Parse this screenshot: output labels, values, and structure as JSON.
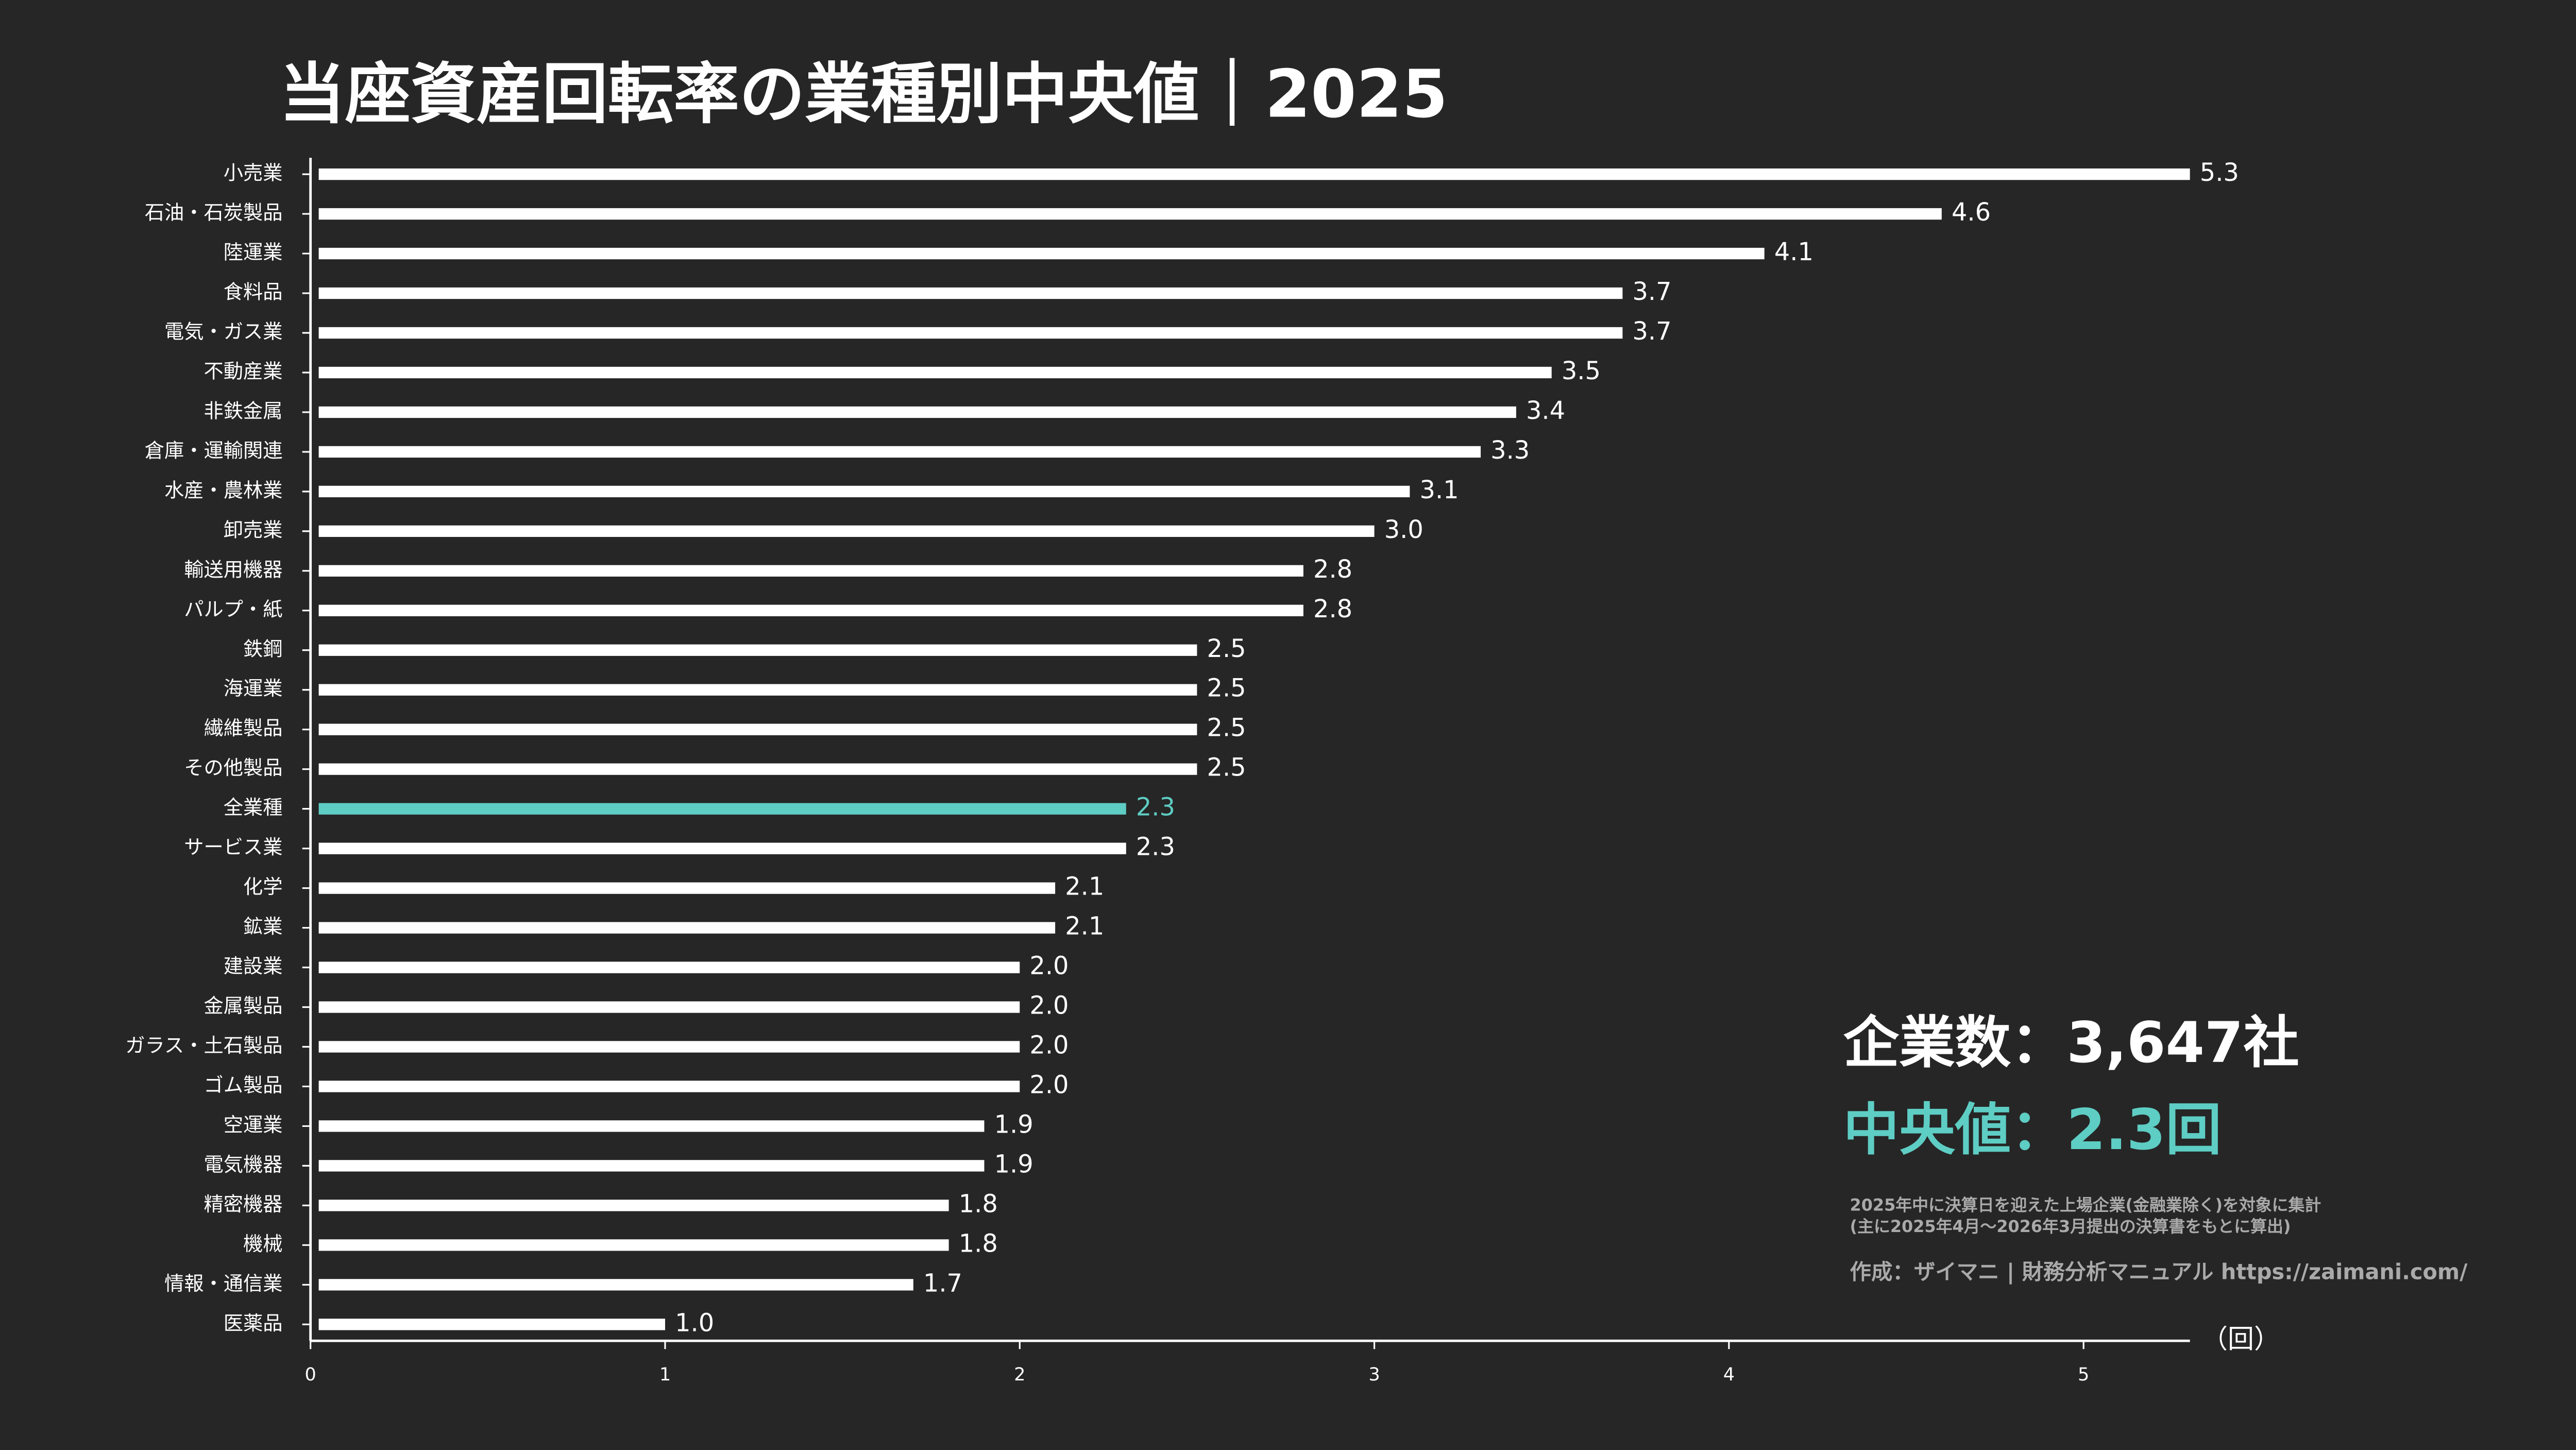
{
  "chart_data": {
    "type": "barh",
    "title": "当座資産回転率の業種別中央値｜2025",
    "categories": [
      "小売業",
      "石油・石炭製品",
      "陸運業",
      "食料品",
      "電気・ガス業",
      "不動産業",
      "非鉄金属",
      "倉庫・運輸関連",
      "水産・農林業",
      "卸売業",
      "輸送用機器",
      "パルプ・紙",
      "鉄鋼",
      "海運業",
      "繊維製品",
      "その他製品",
      "全業種",
      "サービス業",
      "化学",
      "鉱業",
      "建設業",
      "金属製品",
      "ガラス・土石製品",
      "ゴム製品",
      "空運業",
      "電気機器",
      "精密機器",
      "機械",
      "情報・通信業",
      "医薬品"
    ],
    "values": [
      5.3,
      4.6,
      4.1,
      3.7,
      3.7,
      3.5,
      3.4,
      3.3,
      3.1,
      3.0,
      2.8,
      2.8,
      2.5,
      2.5,
      2.5,
      2.5,
      2.3,
      2.3,
      2.1,
      2.1,
      2.0,
      2.0,
      2.0,
      2.0,
      1.9,
      1.9,
      1.8,
      1.8,
      1.7,
      1.0
    ],
    "value_labels": [
      "5.3",
      "4.6",
      "4.1",
      "3.7",
      "3.7",
      "3.5",
      "3.4",
      "3.3",
      "3.1",
      "3.0",
      "2.8",
      "2.8",
      "2.5",
      "2.5",
      "2.5",
      "2.5",
      "2.3",
      "2.3",
      "2.1",
      "2.1",
      "2.0",
      "2.0",
      "2.0",
      "2.0",
      "1.9",
      "1.9",
      "1.8",
      "1.8",
      "1.7",
      "1.0"
    ],
    "colors": [
      "#ffffff",
      "#ffffff",
      "#ffffff",
      "#ffffff",
      "#ffffff",
      "#ffffff",
      "#ffffff",
      "#ffffff",
      "#ffffff",
      "#ffffff",
      "#ffffff",
      "#ffffff",
      "#ffffff",
      "#ffffff",
      "#ffffff",
      "#ffffff",
      "#5ecdc4",
      "#ffffff",
      "#ffffff",
      "#ffffff",
      "#ffffff",
      "#ffffff",
      "#ffffff",
      "#ffffff",
      "#ffffff",
      "#ffffff",
      "#ffffff",
      "#ffffff",
      "#ffffff",
      "#ffffff"
    ],
    "xlim": [
      0,
      5.3
    ],
    "xticks": [
      0,
      1,
      2,
      3,
      4,
      5
    ],
    "x_label": "（回）",
    "annotations": [
      "企業数：3,647社",
      "中央値：2.3回",
      "2025年中に決算日を迎えた上場企業(金融業除く)を対象に集計",
      "(主に2025年4月〜2026年3月提出の決算書をもとに算出)",
      "作成：ザイマニ | 財務分析マニュアル https://zaimani.com/"
    ]
  }
}
